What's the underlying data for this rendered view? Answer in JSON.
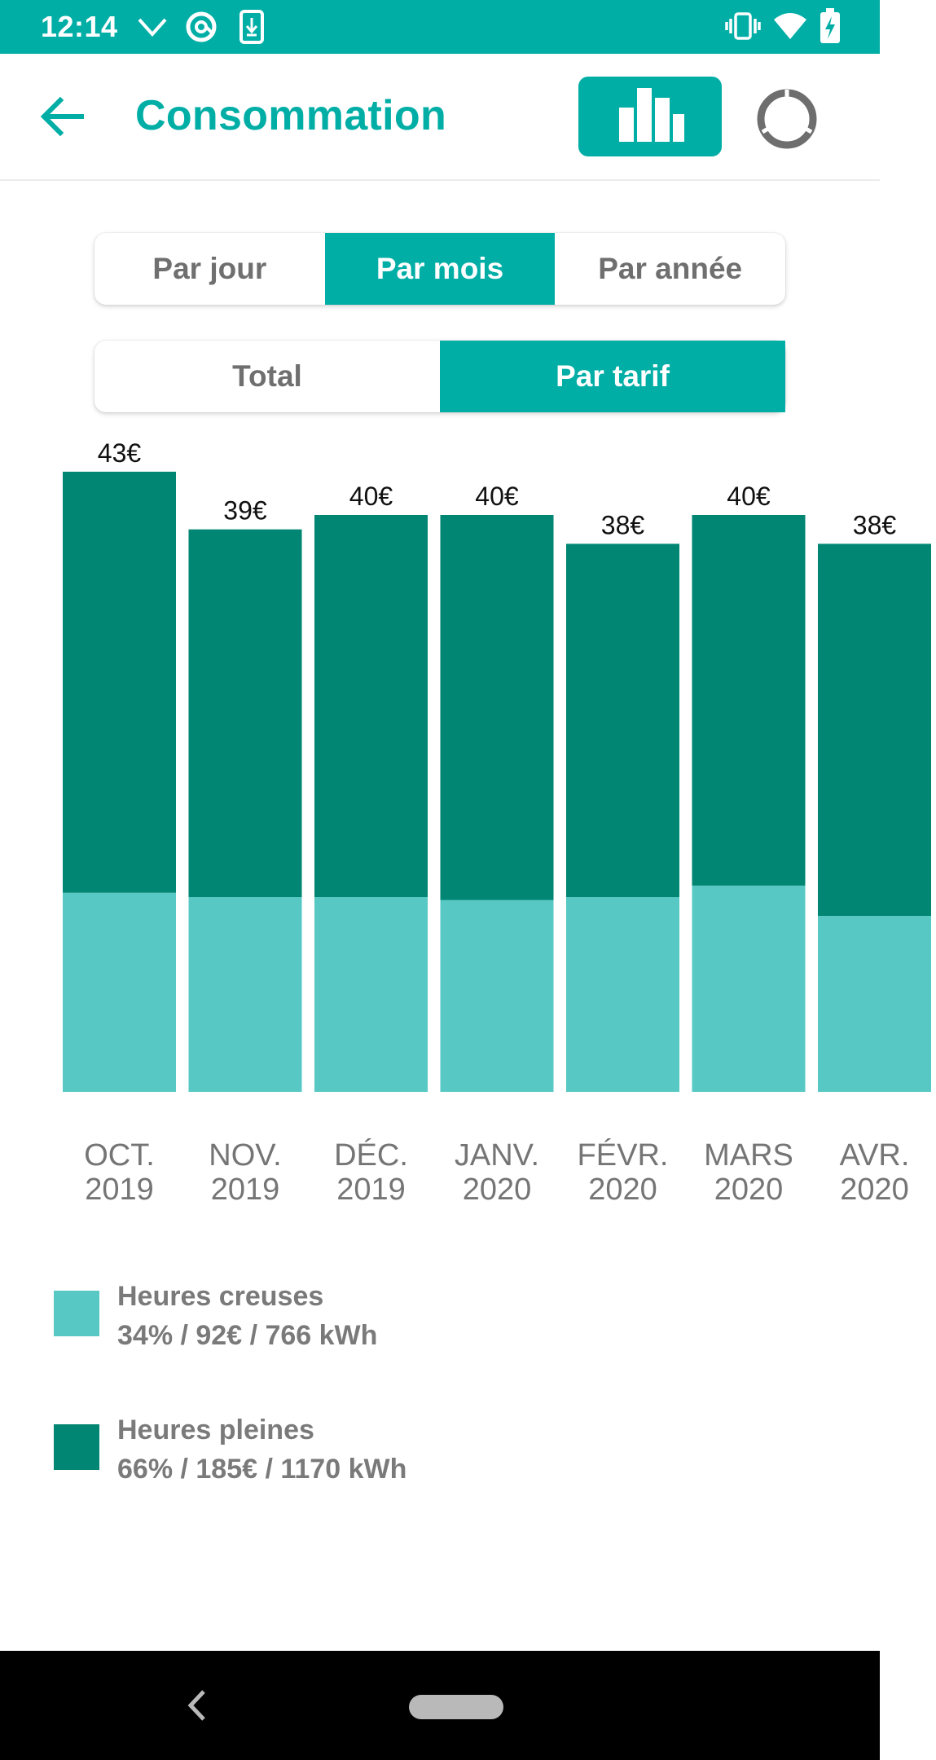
{
  "status_bar": {
    "time": "12:14",
    "icons_left": [
      "chevron-down-icon",
      "at-sign-icon",
      "download-icon"
    ],
    "icons_right": [
      "vibrate-icon",
      "wifi-icon",
      "battery-charging-icon"
    ]
  },
  "app_bar": {
    "title": "Consommation",
    "back_icon": "arrow-left-icon",
    "view_toggles": [
      "bar-chart-icon",
      "donut-chart-icon"
    ]
  },
  "period_tabs": [
    {
      "label": "Par jour",
      "active": false
    },
    {
      "label": "Par mois",
      "active": true
    },
    {
      "label": "Par année",
      "active": false
    }
  ],
  "mode_tabs": [
    {
      "label": "Total",
      "active": false
    },
    {
      "label": "Par tarif",
      "active": true
    }
  ],
  "chart_data": {
    "type": "bar",
    "stacked": true,
    "categories": [
      [
        "OCT.",
        "2019"
      ],
      [
        "NOV.",
        "2019"
      ],
      [
        "DÉC.",
        "2019"
      ],
      [
        "JANV.",
        "2020"
      ],
      [
        "FÉVR.",
        "2020"
      ],
      [
        "MARS",
        "2020"
      ],
      [
        "AVR.",
        "2020"
      ]
    ],
    "totals_labels": [
      "43€",
      "39€",
      "40€",
      "40€",
      "38€",
      "40€",
      "38€"
    ],
    "series": [
      {
        "name": "Heures creuses",
        "color": "#57c8c4",
        "values": [
          13.8,
          13.5,
          13.5,
          13.3,
          13.5,
          14.3,
          12.2
        ]
      },
      {
        "name": "Heures pleines",
        "color": "#008672",
        "values": [
          29.2,
          25.5,
          26.5,
          26.7,
          24.5,
          25.7,
          25.8
        ]
      }
    ],
    "grid": false
  },
  "legend": [
    {
      "name": "Heures creuses",
      "detail": "34% / 92€ / 766 kWh",
      "color": "#57c8c4"
    },
    {
      "name": "Heures pleines",
      "detail": "66% / 185€ / 1170 kWh",
      "color": "#008672"
    }
  ],
  "nav_bar": {
    "back_icon": "nav-back-icon",
    "home_icon": "nav-home-pill-icon"
  }
}
